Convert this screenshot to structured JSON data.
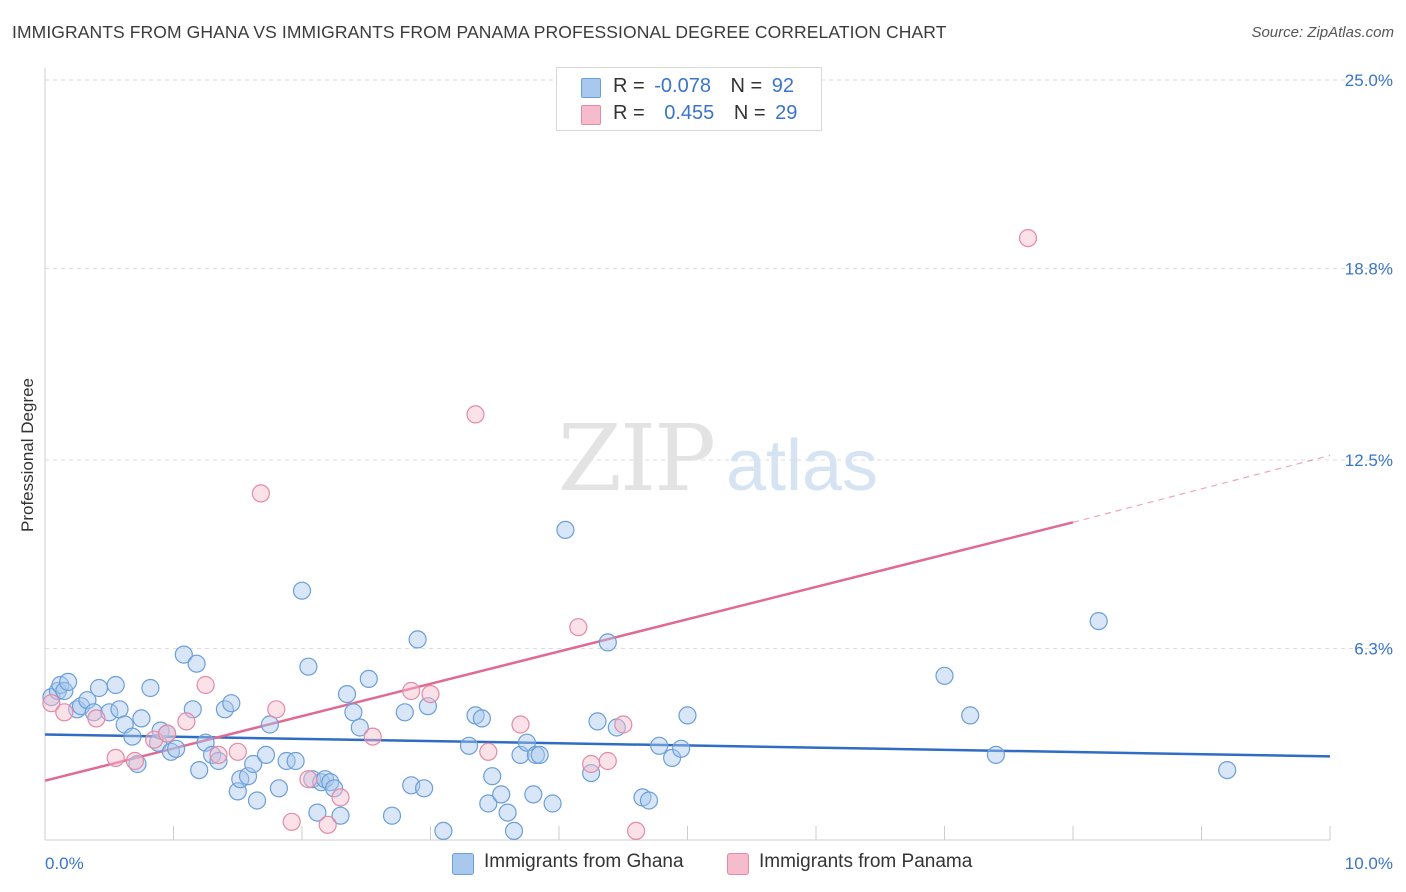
{
  "title": "IMMIGRANTS FROM GHANA VS IMMIGRANTS FROM PANAMA PROFESSIONAL DEGREE CORRELATION CHART",
  "source": "Source: ZipAtlas.com",
  "watermark": {
    "zip": "ZIP",
    "atlas": "atlas"
  },
  "colors": {
    "ghana_fill": "#a9c8ee",
    "ghana_stroke": "#6b9fd8",
    "ghana_line": "#2f6cc4",
    "panama_fill": "#f6bccd",
    "panama_stroke": "#e38aa6",
    "panama_line": "#e06a92",
    "axis_text": "#3a74c9",
    "grid": "#dddddd"
  },
  "legend": {
    "rows": [
      {
        "r_label": "R =",
        "r_value": "-0.078",
        "n_label": "N =",
        "n_value": "92"
      },
      {
        "r_label": "R =",
        "r_value": "0.455",
        "n_label": "N =",
        "n_value": "29"
      }
    ]
  },
  "chart_data": {
    "type": "scatter",
    "title": "IMMIGRANTS FROM GHANA VS IMMIGRANTS FROM PANAMA PROFESSIONAL DEGREE CORRELATION CHART",
    "xlabel": "",
    "ylabel": "Professional Degree",
    "xlim": [
      0,
      10
    ],
    "ylim": [
      0,
      25
    ],
    "x_tick_labels": [
      "0.0%",
      "10.0%"
    ],
    "y_ticks": [
      6.3,
      12.5,
      18.8,
      25.0
    ],
    "y_tick_labels": [
      "6.3%",
      "12.5%",
      "18.8%",
      "25.0%"
    ],
    "grid": "horizontal dashed",
    "legend_position": "top-center and bottom",
    "series": [
      {
        "name": "Immigrants from Ghana",
        "points": [
          [
            0.05,
            4.7
          ],
          [
            0.1,
            4.9
          ],
          [
            0.12,
            5.1
          ],
          [
            0.15,
            4.9
          ],
          [
            0.18,
            5.2
          ],
          [
            0.25,
            4.3
          ],
          [
            0.28,
            4.4
          ],
          [
            0.33,
            4.6
          ],
          [
            0.38,
            4.2
          ],
          [
            0.42,
            5.0
          ],
          [
            0.5,
            4.2
          ],
          [
            0.55,
            5.1
          ],
          [
            0.58,
            4.3
          ],
          [
            0.62,
            3.8
          ],
          [
            0.68,
            3.4
          ],
          [
            0.72,
            2.5
          ],
          [
            0.75,
            4.0
          ],
          [
            0.82,
            5.0
          ],
          [
            0.88,
            3.2
          ],
          [
            0.9,
            3.6
          ],
          [
            0.95,
            3.5
          ],
          [
            0.98,
            2.9
          ],
          [
            1.02,
            3.0
          ],
          [
            1.08,
            6.1
          ],
          [
            1.15,
            4.3
          ],
          [
            1.18,
            5.8
          ],
          [
            1.2,
            2.3
          ],
          [
            1.25,
            3.2
          ],
          [
            1.3,
            2.8
          ],
          [
            1.35,
            2.6
          ],
          [
            1.4,
            4.3
          ],
          [
            1.45,
            4.5
          ],
          [
            1.5,
            1.6
          ],
          [
            1.52,
            2.0
          ],
          [
            1.58,
            2.1
          ],
          [
            1.62,
            2.5
          ],
          [
            1.65,
            1.3
          ],
          [
            1.72,
            2.8
          ],
          [
            1.75,
            3.8
          ],
          [
            1.82,
            1.7
          ],
          [
            1.88,
            2.6
          ],
          [
            1.95,
            2.6
          ],
          [
            2.0,
            8.2
          ],
          [
            2.05,
            5.7
          ],
          [
            2.08,
            2.0
          ],
          [
            2.12,
            0.9
          ],
          [
            2.15,
            1.9
          ],
          [
            2.18,
            2.0
          ],
          [
            2.22,
            1.9
          ],
          [
            2.25,
            1.7
          ],
          [
            2.3,
            0.8
          ],
          [
            2.35,
            4.8
          ],
          [
            2.4,
            4.2
          ],
          [
            2.45,
            3.7
          ],
          [
            2.52,
            5.3
          ],
          [
            2.7,
            0.8
          ],
          [
            2.8,
            4.2
          ],
          [
            2.85,
            1.8
          ],
          [
            2.9,
            6.6
          ],
          [
            2.95,
            1.7
          ],
          [
            2.98,
            4.4
          ],
          [
            3.1,
            0.3
          ],
          [
            3.3,
            3.1
          ],
          [
            3.35,
            4.1
          ],
          [
            3.4,
            4.0
          ],
          [
            3.45,
            1.2
          ],
          [
            3.48,
            2.1
          ],
          [
            3.55,
            1.5
          ],
          [
            3.6,
            0.9
          ],
          [
            3.65,
            0.3
          ],
          [
            3.7,
            2.8
          ],
          [
            3.75,
            3.2
          ],
          [
            3.8,
            1.5
          ],
          [
            3.82,
            2.8
          ],
          [
            3.85,
            2.8
          ],
          [
            3.95,
            1.2
          ],
          [
            4.05,
            10.2
          ],
          [
            4.25,
            2.2
          ],
          [
            4.3,
            3.9
          ],
          [
            4.38,
            6.5
          ],
          [
            4.45,
            3.7
          ],
          [
            4.65,
            1.4
          ],
          [
            4.7,
            1.3
          ],
          [
            4.78,
            3.1
          ],
          [
            4.88,
            2.7
          ],
          [
            4.95,
            3.0
          ],
          [
            5.0,
            4.1
          ],
          [
            7.0,
            5.4
          ],
          [
            7.2,
            4.1
          ],
          [
            7.4,
            2.8
          ],
          [
            8.2,
            7.2
          ],
          [
            9.2,
            2.3
          ]
        ]
      },
      {
        "name": "Immigrants from Panama",
        "points": [
          [
            0.05,
            4.5
          ],
          [
            0.15,
            4.2
          ],
          [
            0.4,
            4.0
          ],
          [
            0.55,
            2.7
          ],
          [
            0.7,
            2.6
          ],
          [
            0.85,
            3.3
          ],
          [
            0.95,
            3.5
          ],
          [
            1.1,
            3.9
          ],
          [
            1.25,
            5.1
          ],
          [
            1.35,
            2.8
          ],
          [
            1.5,
            2.9
          ],
          [
            1.68,
            11.4
          ],
          [
            1.8,
            4.3
          ],
          [
            1.92,
            0.6
          ],
          [
            2.05,
            2.0
          ],
          [
            2.2,
            0.5
          ],
          [
            2.3,
            1.4
          ],
          [
            2.55,
            3.4
          ],
          [
            2.85,
            4.9
          ],
          [
            3.0,
            4.8
          ],
          [
            3.35,
            14.0
          ],
          [
            3.45,
            2.9
          ],
          [
            3.7,
            3.8
          ],
          [
            4.15,
            7.0
          ],
          [
            4.25,
            2.5
          ],
          [
            4.38,
            2.6
          ],
          [
            4.5,
            3.8
          ],
          [
            4.6,
            0.3
          ],
          [
            7.65,
            19.8
          ]
        ]
      }
    ],
    "trendlines": [
      {
        "series": "Immigrants from Ghana",
        "from": [
          0,
          3.47
        ],
        "to": [
          10,
          2.75
        ]
      },
      {
        "series": "Immigrants from Panama",
        "from": [
          0,
          1.95
        ],
        "to": [
          8.0,
          10.45
        ],
        "dashed_to": [
          10,
          12.65
        ]
      }
    ]
  },
  "bottom_legend": [
    "Immigrants from Ghana",
    "Immigrants from Panama"
  ]
}
